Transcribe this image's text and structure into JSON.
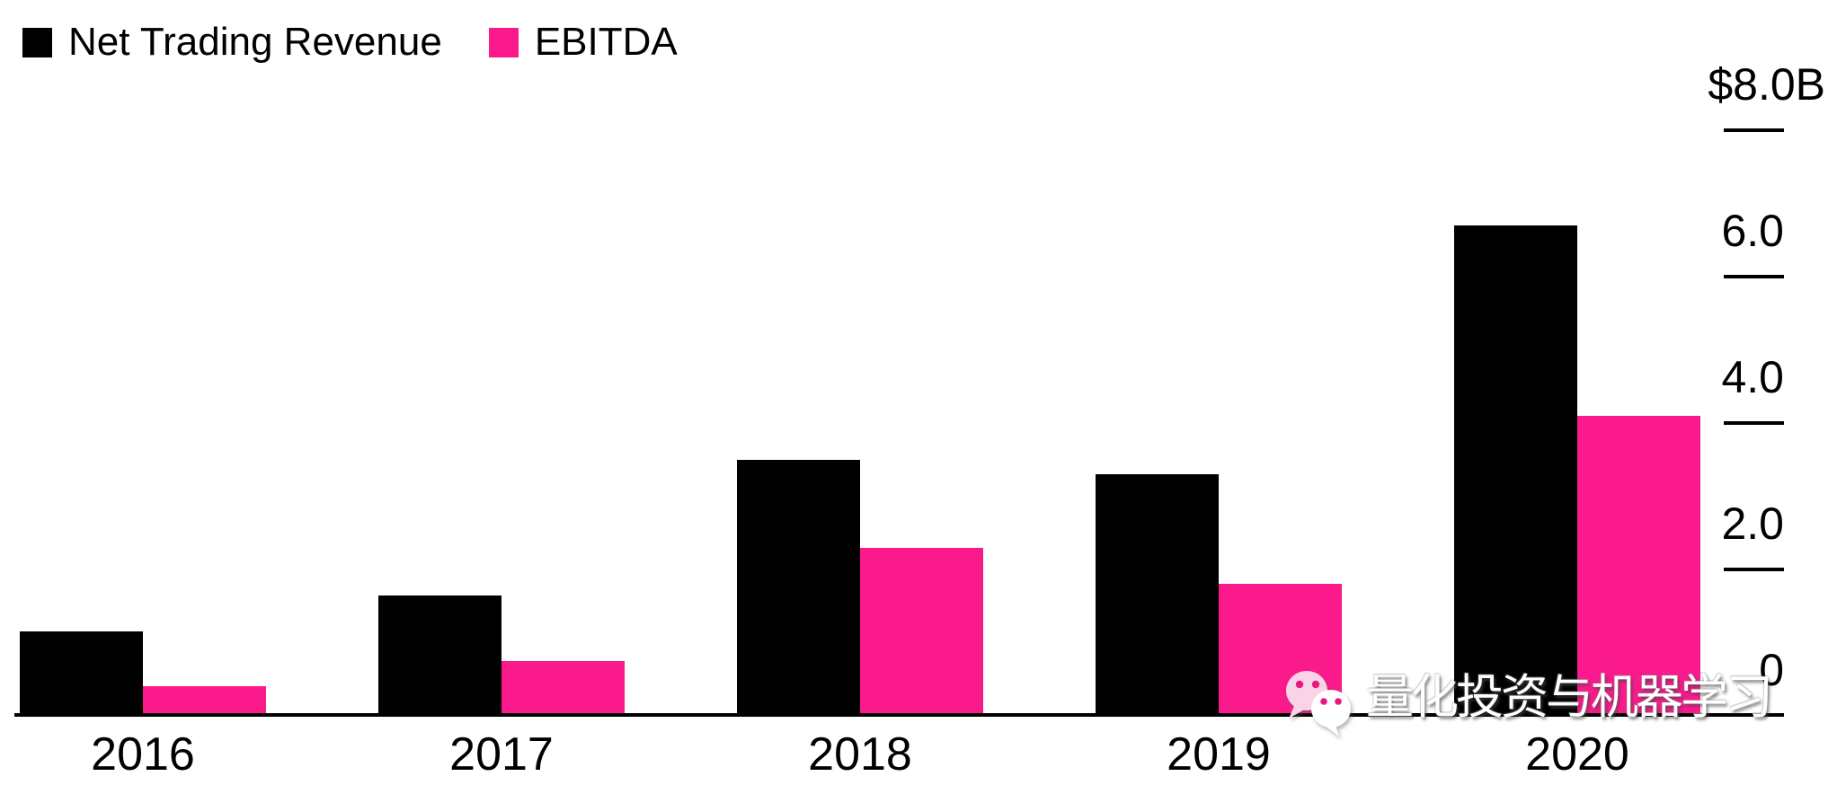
{
  "legend": {
    "items": [
      {
        "label": "Net Trading Revenue",
        "color": "#000000"
      },
      {
        "label": "EBITDA",
        "color": "#FA1A8C"
      }
    ]
  },
  "chart_data": {
    "type": "bar",
    "title": "",
    "xlabel": "",
    "ylabel": "",
    "unit": "$ billions",
    "categories": [
      "2016",
      "2017",
      "2018",
      "2019",
      "2020"
    ],
    "series": [
      {
        "name": "Net Trading Revenue",
        "color": "#000000",
        "values": [
          1.15,
          1.65,
          3.5,
          3.3,
          6.7
        ]
      },
      {
        "name": "EBITDA",
        "color": "#FA1A8C",
        "values": [
          0.4,
          0.75,
          2.3,
          1.8,
          4.1
        ]
      }
    ],
    "y_axis": {
      "side": "right",
      "ylim": [
        0,
        8.6
      ],
      "ticks": [
        {
          "value": 8,
          "label": "$8.0B"
        },
        {
          "value": 6,
          "label": "6.0"
        },
        {
          "value": 4,
          "label": "4.0"
        },
        {
          "value": 2,
          "label": "2.0"
        },
        {
          "value": 0,
          "label": "0"
        }
      ]
    },
    "grid": false,
    "legend_position": "top-left"
  },
  "watermark": {
    "icon": "wechat-icon",
    "text": "量化投资与机器学习",
    "text_color": "#FFFFFF"
  }
}
